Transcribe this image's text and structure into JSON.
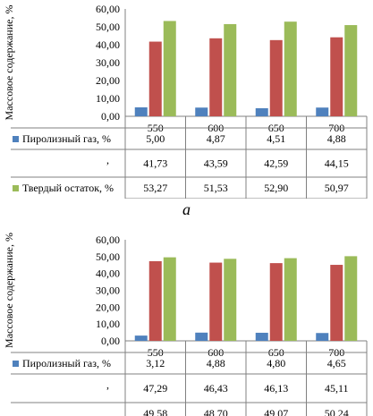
{
  "colors": {
    "series": [
      "#4F81BD",
      "#C0504D",
      "#9BBB59"
    ],
    "grid": "#999999",
    "axis": "#808080"
  },
  "caption": "a",
  "chart_data": [
    {
      "type": "bar",
      "ylabel": "Массовое содержание, %",
      "ylim": [
        0,
        60
      ],
      "yticks": [
        "0,00",
        "10,00",
        "20,00",
        "30,00",
        "40,00",
        "50,00",
        "60,00"
      ],
      "categories": [
        "550",
        "600",
        "650",
        "700"
      ],
      "series": [
        {
          "name": "Пиролизный газ, %",
          "values": [
            5.0,
            4.87,
            4.51,
            4.88
          ],
          "labels": [
            "5,00",
            "4,87",
            "4,51",
            "4,88"
          ]
        },
        {
          "name": "",
          "values": [
            41.73,
            43.59,
            42.59,
            44.15
          ],
          "labels": [
            "41,73",
            "43,59",
            "42,59",
            "44,15"
          ]
        },
        {
          "name": "Твердый остаток, %",
          "values": [
            53.27,
            51.53,
            52.9,
            50.97
          ],
          "labels": [
            "53,27",
            "51,53",
            "52,90",
            "50,97"
          ]
        }
      ],
      "legend": "table-left",
      "grid": false
    },
    {
      "type": "bar",
      "ylabel": "Массовое содержание, %",
      "ylim": [
        0,
        60
      ],
      "yticks": [
        "0,00",
        "10,00",
        "20,00",
        "30,00",
        "40,00",
        "50,00",
        "60,00"
      ],
      "categories": [
        "550",
        "600",
        "650",
        "700"
      ],
      "series": [
        {
          "name": "Пиролизный газ, %",
          "values": [
            3.12,
            4.88,
            4.8,
            4.65
          ],
          "labels": [
            "3,12",
            "4,88",
            "4,80",
            "4,65"
          ]
        },
        {
          "name": "",
          "values": [
            47.29,
            46.43,
            46.13,
            45.11
          ],
          "labels": [
            "47,29",
            "46,43",
            "46,13",
            "45,11"
          ]
        },
        {
          "name": "",
          "values": [
            49.58,
            48.7,
            49.07,
            50.24
          ],
          "labels": [
            "49,58",
            "48,70",
            "49,07",
            "50,24"
          ]
        }
      ],
      "legend": "table-left",
      "grid": false
    }
  ]
}
